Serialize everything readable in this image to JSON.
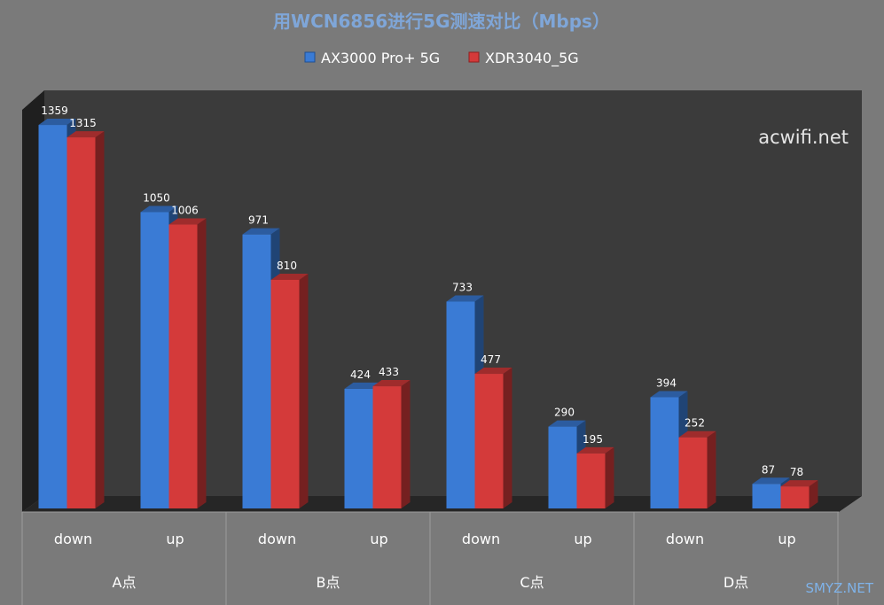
{
  "chart_data": {
    "type": "bar",
    "title": "用WCN6856进行5G测速对比（Mbps）",
    "watermark": "acwifi.net",
    "corner_mark": "SMYZ.NET",
    "groups": [
      {
        "label": "A点",
        "categories": [
          "down",
          "up"
        ]
      },
      {
        "label": "B点",
        "categories": [
          "down",
          "up"
        ]
      },
      {
        "label": "C点",
        "categories": [
          "down",
          "up"
        ]
      },
      {
        "label": "D点",
        "categories": [
          "down",
          "up"
        ]
      }
    ],
    "categories": [
      "down",
      "up",
      "down",
      "up",
      "down",
      "up",
      "down",
      "up"
    ],
    "series": [
      {
        "name": "AX3000 Pro+ 5G",
        "color": "#3a7bd5",
        "values": [
          1359,
          1050,
          971,
          424,
          733,
          290,
          394,
          87
        ],
        "labels": [
          "1359",
          "1050",
          "971",
          "424",
          "733",
          "290",
          "394",
          "87"
        ]
      },
      {
        "name": "XDR3040_5G",
        "color": "#d43a3a",
        "values": [
          1315,
          1006,
          810,
          433,
          477,
          195,
          252,
          78
        ],
        "labels": [
          "1315",
          "1006",
          "810",
          "433",
          "477",
          "195",
          "252",
          "78"
        ]
      }
    ],
    "ylim": [
      0,
      1400
    ],
    "grid": false,
    "legend": "top-center"
  },
  "colors": {
    "background": "#7a7a7a",
    "plot_back": "#3d3d3d",
    "title": "#7fa6d8"
  }
}
